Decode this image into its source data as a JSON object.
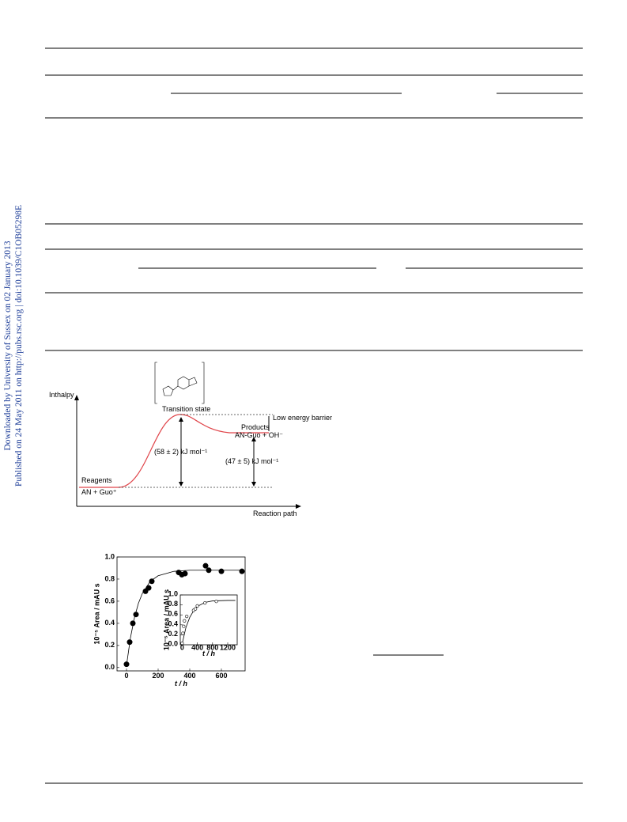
{
  "sidebar": {
    "downloaded": "Downloaded by University of Sussex on 02 January 2013",
    "published": "Published on 24 May 2011 on http://pubs.rsc.org | doi:10.1039/C1OB05298E"
  },
  "energy_diagram": {
    "y_label": "Inthalpy",
    "x_label": "Reaction path",
    "transition_state": "Transition state",
    "barrier": "Low energy barrier",
    "products": "Products",
    "products_formula": "AN-Guo + OH⁻",
    "activation": "(58 ± 2) kJ mol⁻¹",
    "reaction": "(47 ± 5) kJ mol⁻¹",
    "reagents": "Reagents",
    "reagents_formula": "AN + Guo⁺"
  },
  "chart_data": [
    {
      "type": "scatter",
      "x_label": "t / h",
      "y_label": "10⁻⁵ Area / mAU s",
      "marker": "filled",
      "x": [
        0,
        20,
        40,
        60,
        120,
        140,
        160,
        330,
        350,
        370,
        500,
        520,
        600,
        730
      ],
      "values": [
        0.03,
        0.23,
        0.4,
        0.48,
        0.69,
        0.72,
        0.78,
        0.86,
        0.84,
        0.85,
        0.92,
        0.88,
        0.87,
        0.87
      ],
      "curve": {
        "x": [
          0,
          25,
          50,
          75,
          100,
          150,
          200,
          300,
          400,
          600,
          740
        ],
        "values": [
          0.02,
          0.27,
          0.45,
          0.58,
          0.67,
          0.78,
          0.83,
          0.87,
          0.88,
          0.88,
          0.88
        ]
      },
      "xlim": [
        -60,
        750
      ],
      "ylim": [
        -0.03,
        1.0
      ],
      "xticks": [
        0,
        200,
        400,
        600
      ],
      "yticks": [
        {
          "value": 0,
          "label": "0.0"
        },
        0.2,
        0.4,
        0.6,
        0.8,
        {
          "value": 1,
          "label": "1.0"
        }
      ]
    },
    {
      "type": "scatter",
      "x_label": "t / h",
      "y_label": "10⁻⁵ Area / mAU s",
      "marker": "open",
      "x": [
        0,
        20,
        40,
        60,
        120,
        300,
        350,
        400,
        600,
        900
      ],
      "values": [
        0.03,
        0.23,
        0.37,
        0.48,
        0.57,
        0.69,
        0.72,
        0.78,
        0.84,
        0.87
      ],
      "curve": {
        "x": [
          0,
          100,
          200,
          300,
          400,
          600,
          800,
          1200,
          1400
        ],
        "values": [
          0.02,
          0.35,
          0.55,
          0.68,
          0.77,
          0.85,
          0.88,
          0.89,
          0.89
        ]
      },
      "xlim": [
        -50,
        1450
      ],
      "ylim": [
        0,
        1.0
      ],
      "xticks": [
        0,
        400,
        800,
        1200
      ],
      "yticks": [
        {
          "value": 0,
          "label": "0.0"
        },
        0.2,
        0.4,
        0.6,
        0.8,
        {
          "value": 1,
          "label": "1.0"
        }
      ]
    }
  ]
}
